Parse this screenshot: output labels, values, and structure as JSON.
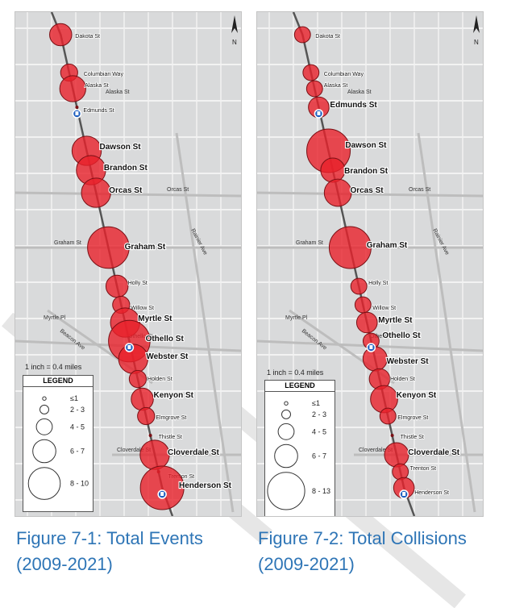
{
  "figures": [
    {
      "caption": "Figure 7-1: Total Events (2009-2021)",
      "scale": "1 inch = 0.4 miles",
      "legend": {
        "title": "LEGEND",
        "items": [
          {
            "label": "≤1",
            "r": 1
          },
          {
            "label": "2 - 3",
            "r": 2.5
          },
          {
            "label": "4 - 5",
            "r": 4.5
          },
          {
            "label": "6 - 7",
            "r": 6.5
          },
          {
            "label": "8 - 10",
            "r": 9
          }
        ]
      },
      "stations": [
        {
          "name": "Dakota St",
          "value": 2,
          "bold": false
        },
        {
          "name": "Columbian Way",
          "value": 1,
          "bold": false
        },
        {
          "name": "Alaska St",
          "value": 3,
          "bold": false
        },
        {
          "name": "Edmunds St",
          "value": 0,
          "bold": false
        },
        {
          "name": "Dawson St",
          "value": 4,
          "bold": true
        },
        {
          "name": "Brandon St",
          "value": 4,
          "bold": true
        },
        {
          "name": "Orcas St",
          "value": 4,
          "bold": true
        },
        {
          "name": "Graham St",
          "value": 9,
          "bold": true
        },
        {
          "name": "Holly St",
          "value": 2,
          "bold": false
        },
        {
          "name": "Willow St",
          "value": 1,
          "bold": false
        },
        {
          "name": "Myrtle St",
          "value": 4,
          "bold": true
        },
        {
          "name": "Othello St",
          "value": 9,
          "bold": true
        },
        {
          "name": "Webster St",
          "value": 4,
          "bold": true
        },
        {
          "name": "Holden St",
          "value": 1,
          "bold": false
        },
        {
          "name": "Kenyon St",
          "value": 2,
          "bold": true
        },
        {
          "name": "Elmgrove St",
          "value": 1,
          "bold": false
        },
        {
          "name": "Thistle St",
          "value": 0,
          "bold": false
        },
        {
          "name": "Cloverdale St",
          "value": 4,
          "bold": true
        },
        {
          "name": "Trenton St",
          "value": 0,
          "bold": false
        },
        {
          "name": "Henderson St",
          "value": 10,
          "bold": true
        }
      ]
    },
    {
      "caption": "Figure 7-2: Total Collisions (2009-2021)",
      "scale": "1 inch = 0.4 miles",
      "legend": {
        "title": "LEGEND",
        "items": [
          {
            "label": "≤1",
            "r": 1
          },
          {
            "label": "2 - 3",
            "r": 2.5
          },
          {
            "label": "4 - 5",
            "r": 4.5
          },
          {
            "label": "6 - 7",
            "r": 6.5
          },
          {
            "label": "8 - 13",
            "r": 10.5
          }
        ]
      },
      "stations": [
        {
          "name": "Dakota St",
          "value": 1,
          "bold": false
        },
        {
          "name": "Columbian Way",
          "value": 1,
          "bold": false
        },
        {
          "name": "Alaska St",
          "value": 1,
          "bold": false
        },
        {
          "name": "Edmunds St",
          "value": 2,
          "bold": true
        },
        {
          "name": "Dawson St",
          "value": 12,
          "bold": true
        },
        {
          "name": "Brandon St",
          "value": 3,
          "bold": true
        },
        {
          "name": "Orcas St",
          "value": 4,
          "bold": true
        },
        {
          "name": "Graham St",
          "value": 11,
          "bold": true
        },
        {
          "name": "Holly St",
          "value": 1,
          "bold": false
        },
        {
          "name": "Willow St",
          "value": 1,
          "bold": false
        },
        {
          "name": "Myrtle St",
          "value": 2,
          "bold": true
        },
        {
          "name": "Othello St",
          "value": 1,
          "bold": true
        },
        {
          "name": "Webster St",
          "value": 3,
          "bold": true
        },
        {
          "name": "Holden St",
          "value": 2,
          "bold": false
        },
        {
          "name": "Kenyon St",
          "value": 4,
          "bold": true
        },
        {
          "name": "Elmgrove St",
          "value": 1,
          "bold": false
        },
        {
          "name": "Thistle St",
          "value": 0,
          "bold": false
        },
        {
          "name": "Cloverdale St",
          "value": 3,
          "bold": true
        },
        {
          "name": "Trenton St",
          "value": 1,
          "bold": false
        },
        {
          "name": "Henderson St",
          "value": 2,
          "bold": false
        }
      ]
    }
  ],
  "cross_streets": [
    "Orcas St",
    "Graham St",
    "Myrtle Pl",
    "Othello St",
    "Cloverdale St",
    "Rainier Ave",
    "Beacon Ave",
    "Alaska St",
    "Martin Luther King Jr Way S"
  ],
  "colors": {
    "circle_fill": "#e8202a",
    "circle_stroke": "#7a1015",
    "rail_line": "#555555",
    "map_bg": "#d9dadb",
    "road": "#f2f2f2",
    "caption": "#2e75b6"
  },
  "icons": [
    "north-arrow-icon",
    "light-rail-station-icon"
  ]
}
